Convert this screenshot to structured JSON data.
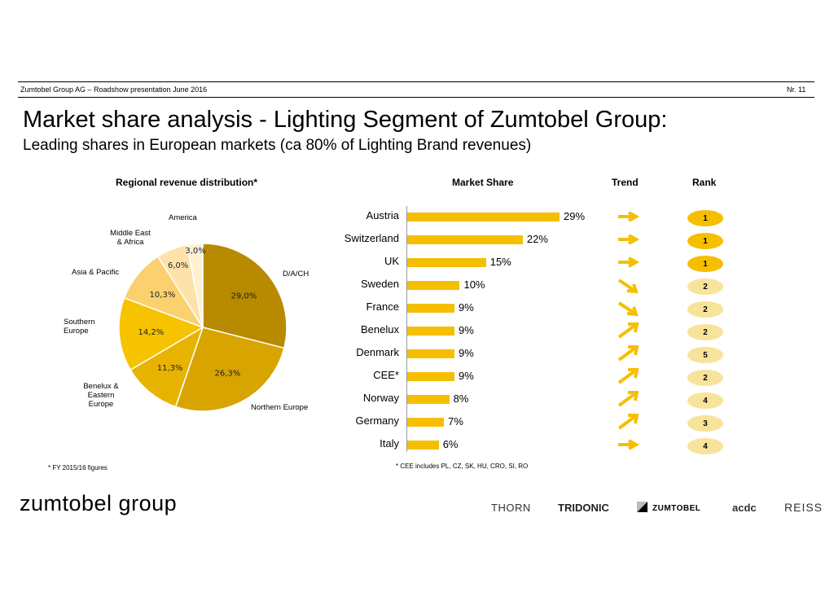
{
  "header": {
    "presentation": "Zumtobel Group AG – Roadshow presentation June 2016",
    "page_number": "Nr. 11"
  },
  "title": "Market share analysis - Lighting Segment of Zumtobel Group:",
  "subtitle": "Leading shares in European markets (ca 80% of Lighting Brand revenues)",
  "footnotes": {
    "fy": "* FY 2015/16 figures",
    "cee": "* CEE includes PL, CZ, SK, HU, CRO, SI, RO"
  },
  "footer": {
    "logo": "zumtobel group",
    "brands": [
      "THORN",
      "TRIDONIC",
      "ZUMTOBEL",
      "acdc",
      "REISS"
    ]
  },
  "colors": {
    "bar": "#f5bf00",
    "rank_dark": "#f5bf00",
    "rank_light": "#f7e39a"
  },
  "chart_data": [
    {
      "type": "pie",
      "title": "Regional revenue distribution*",
      "slices": [
        {
          "label": "D/A/CH",
          "value": 29.0,
          "value_label": "29,0%",
          "color": "#b88a00"
        },
        {
          "label": "Northern Europe",
          "value": 26.3,
          "value_label": "26,3%",
          "color": "#d8a400"
        },
        {
          "label": "Benelux & Eastern Europe",
          "value": 11.3,
          "value_label": "11,3%",
          "color": "#e8b300"
        },
        {
          "label": "Southern Europe",
          "value": 14.2,
          "value_label": "14,2%",
          "color": "#f7c200"
        },
        {
          "label": "Asia & Pacific",
          "value": 10.3,
          "value_label": "10,3%",
          "color": "#fbd06e"
        },
        {
          "label": "Middle East & Africa",
          "value": 6.0,
          "value_label": "6,0%",
          "color": "#fde3aa"
        },
        {
          "label": "America",
          "value": 3.0,
          "value_label": "3,0%",
          "color": "#fff0d2"
        }
      ]
    },
    {
      "type": "bar",
      "orientation": "horizontal",
      "title": "Market Share",
      "categories": [
        "Austria",
        "Switzerland",
        "UK",
        "Sweden",
        "France",
        "Benelux",
        "Denmark",
        "CEE*",
        "Norway",
        "Germany",
        "Italy"
      ],
      "values": [
        29,
        22,
        15,
        10,
        9,
        9,
        9,
        9,
        8,
        7,
        6
      ],
      "value_labels": [
        "29%",
        "22%",
        "15%",
        "10%",
        "9%",
        "9%",
        "9%",
        "9%",
        "8%",
        "7%",
        "6%"
      ],
      "trend_title": "Trend",
      "trend": [
        "right",
        "right",
        "right",
        "down-right",
        "down-right",
        "up-right",
        "up-right",
        "up-right",
        "up-right",
        "up-right",
        "right"
      ],
      "rank_title": "Rank",
      "rank": [
        "1",
        "1",
        "1",
        "2",
        "2",
        "2",
        "5",
        "2",
        "4",
        "3",
        "4"
      ]
    }
  ]
}
